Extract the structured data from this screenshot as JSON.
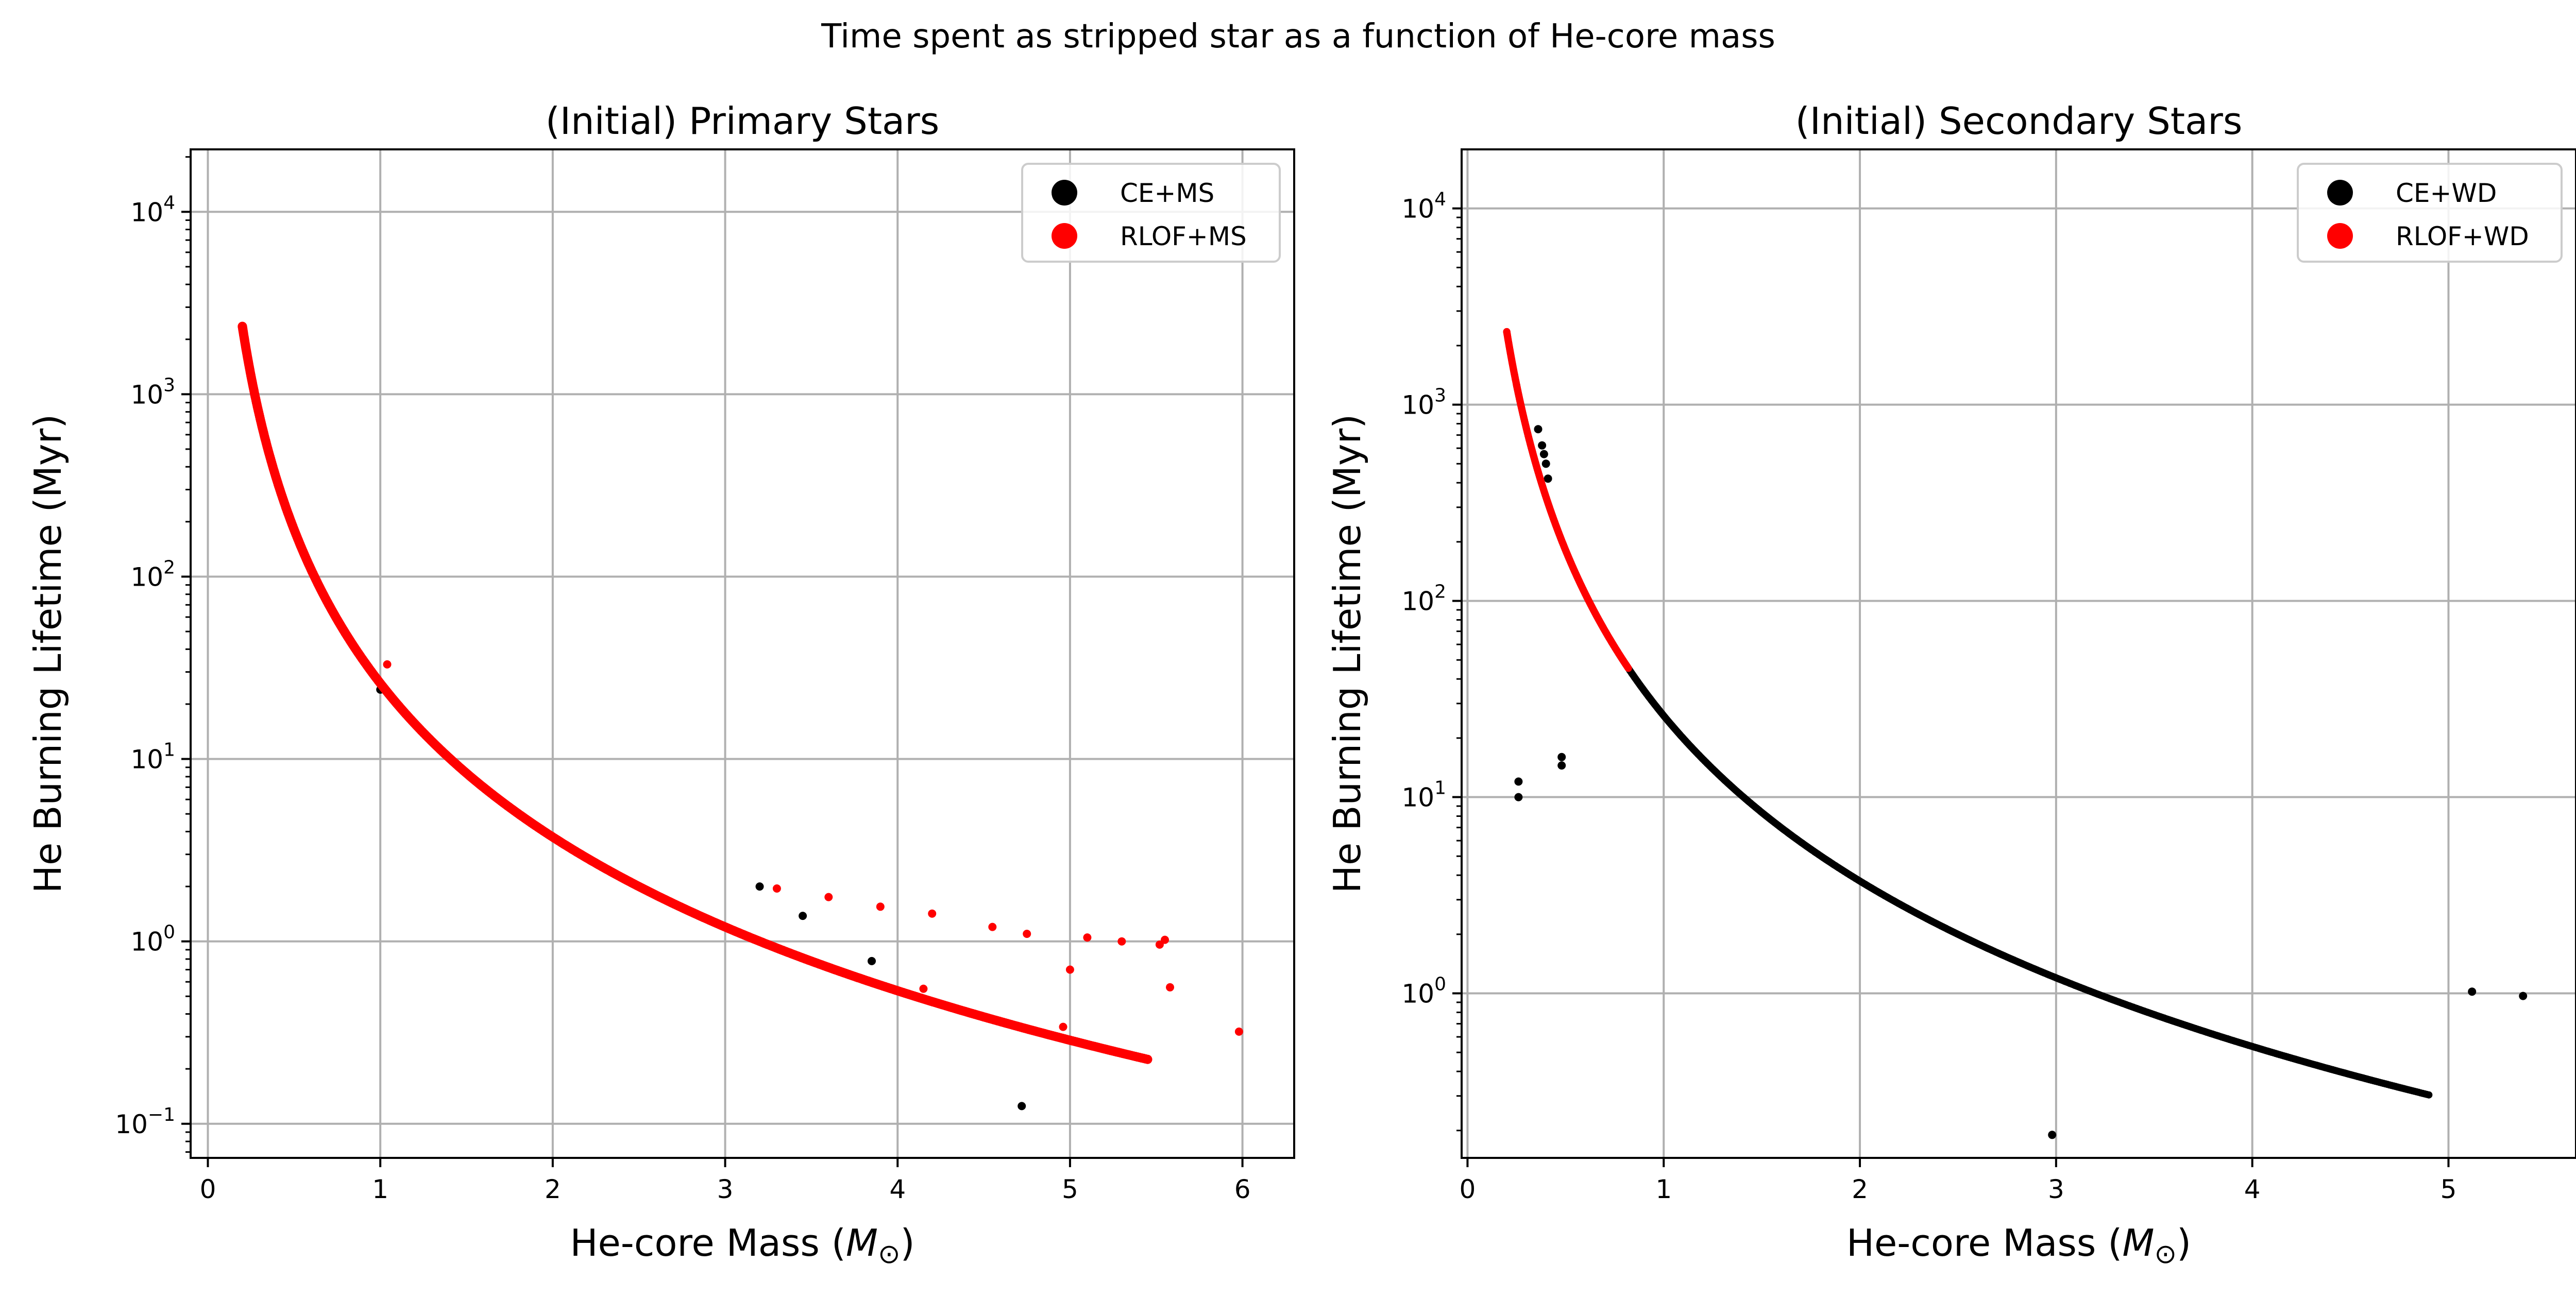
{
  "figure": {
    "suptitle": "Time spent as stripped star as a function of He-core mass"
  },
  "colors": {
    "grid": "#b0b0b0",
    "axis": "#000000",
    "ce": "#000000",
    "rlof": "#ff0000"
  },
  "chart_data": [
    {
      "type": "scatter",
      "title": "(Initial) Primary Stars",
      "xlabel": "He-core Mass (M_⊙)",
      "ylabel": "He Burning Lifetime (Myr)",
      "xlim": [
        -0.1,
        6.3
      ],
      "ylim": [
        0.065,
        22000
      ],
      "yscale": "log",
      "grid": true,
      "legend": "top-right",
      "xticks": [
        {
          "value": 0,
          "label": "0"
        },
        {
          "value": 1,
          "label": "1"
        },
        {
          "value": 2,
          "label": "2"
        },
        {
          "value": 3,
          "label": "3"
        },
        {
          "value": 4,
          "label": "4"
        },
        {
          "value": 5,
          "label": "5"
        },
        {
          "value": 6,
          "label": "6"
        }
      ],
      "yticks": [
        {
          "value": 0.1,
          "base": "10",
          "exp": "−1"
        },
        {
          "value": 1,
          "base": "10",
          "exp": "0"
        },
        {
          "value": 10,
          "base": "10",
          "exp": "1"
        },
        {
          "value": 100,
          "base": "10",
          "exp": "2"
        },
        {
          "value": 1000,
          "base": "10",
          "exp": "3"
        },
        {
          "value": 10000,
          "base": "10",
          "exp": "4"
        }
      ],
      "series": [
        {
          "name": "CE+MS",
          "color": "#000000",
          "curve": {
            "xmin": 0.3,
            "xmax": 3.1
          },
          "points": [
            [
              3.2,
              2.0
            ],
            [
              3.45,
              1.38
            ],
            [
              3.85,
              0.78
            ],
            [
              4.72,
              0.125
            ],
            [
              1.0,
              24.0
            ]
          ]
        },
        {
          "name": "RLOF+MS",
          "color": "#ff0000",
          "curve": {
            "xmin": 0.2,
            "xmax": 5.45
          },
          "points": [
            [
              1.04,
              33.0
            ],
            [
              4.15,
              0.55
            ],
            [
              4.96,
              0.34
            ],
            [
              5.58,
              0.56
            ],
            [
              5.98,
              0.32
            ],
            [
              5.0,
              0.7
            ],
            [
              3.3,
              1.95
            ],
            [
              3.6,
              1.75
            ],
            [
              3.9,
              1.55
            ],
            [
              4.2,
              1.42
            ],
            [
              4.55,
              1.2
            ],
            [
              4.75,
              1.1
            ],
            [
              5.1,
              1.05
            ],
            [
              5.3,
              1.0
            ],
            [
              5.52,
              0.96
            ],
            [
              5.55,
              1.02
            ]
          ]
        }
      ]
    },
    {
      "type": "scatter",
      "title": "(Initial) Secondary Stars",
      "xlabel": "He-core Mass (M_⊙)",
      "ylabel": "He Burning Lifetime (Myr)",
      "xlim": [
        -0.03,
        5.65
      ],
      "ylim": [
        0.145,
        20000
      ],
      "yscale": "log",
      "grid": true,
      "legend": "top-right",
      "xticks": [
        {
          "value": 0,
          "label": "0"
        },
        {
          "value": 1,
          "label": "1"
        },
        {
          "value": 2,
          "label": "2"
        },
        {
          "value": 3,
          "label": "3"
        },
        {
          "value": 4,
          "label": "4"
        },
        {
          "value": 5,
          "label": "5"
        }
      ],
      "yticks": [
        {
          "value": 1,
          "base": "10",
          "exp": "0"
        },
        {
          "value": 10,
          "base": "10",
          "exp": "1"
        },
        {
          "value": 100,
          "base": "10",
          "exp": "2"
        },
        {
          "value": 1000,
          "base": "10",
          "exp": "3"
        },
        {
          "value": 10000,
          "base": "10",
          "exp": "4"
        }
      ],
      "series": [
        {
          "name": "CE+WD",
          "color": "#000000",
          "curve": {
            "xmin": 0.25,
            "xmax": 4.9
          },
          "points": [
            [
              0.26,
              12.0
            ],
            [
              0.26,
              10.0
            ],
            [
              0.48,
              16.0
            ],
            [
              0.48,
              14.5
            ],
            [
              2.98,
              0.19
            ],
            [
              5.12,
              1.02
            ],
            [
              5.38,
              0.97
            ],
            [
              0.36,
              750
            ],
            [
              0.38,
              620
            ],
            [
              0.4,
              500
            ],
            [
              0.41,
              420
            ],
            [
              0.39,
              560
            ]
          ]
        },
        {
          "name": "RLOF+WD",
          "color": "#ff0000",
          "curve": {
            "xmin": 0.2,
            "xmax": 0.82
          },
          "points": []
        }
      ]
    }
  ]
}
